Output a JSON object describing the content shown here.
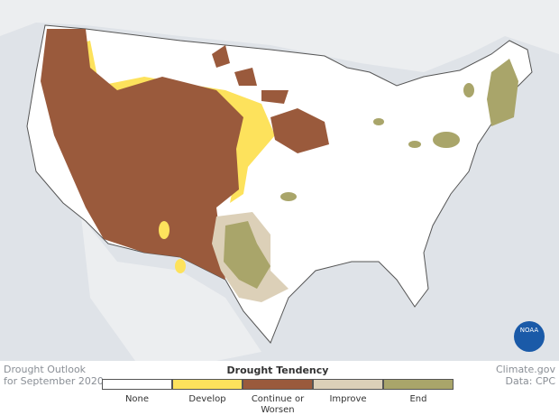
{
  "title_lines": [
    "Drought Outlook",
    "for September 2020"
  ],
  "legend": {
    "title": "Drought Tendency",
    "items": [
      {
        "label": "None",
        "color": "#ffffff"
      },
      {
        "label": "Develop",
        "color": "#fde25c"
      },
      {
        "label": "Continue or Worsen",
        "color": "#9a5a3c"
      },
      {
        "label": "Improve",
        "color": "#dcd0b8"
      },
      {
        "label": "End",
        "color": "#a9a56a"
      }
    ]
  },
  "credits": [
    "Climate.gov",
    "Data: CPC"
  ],
  "logo": "NOAA"
}
